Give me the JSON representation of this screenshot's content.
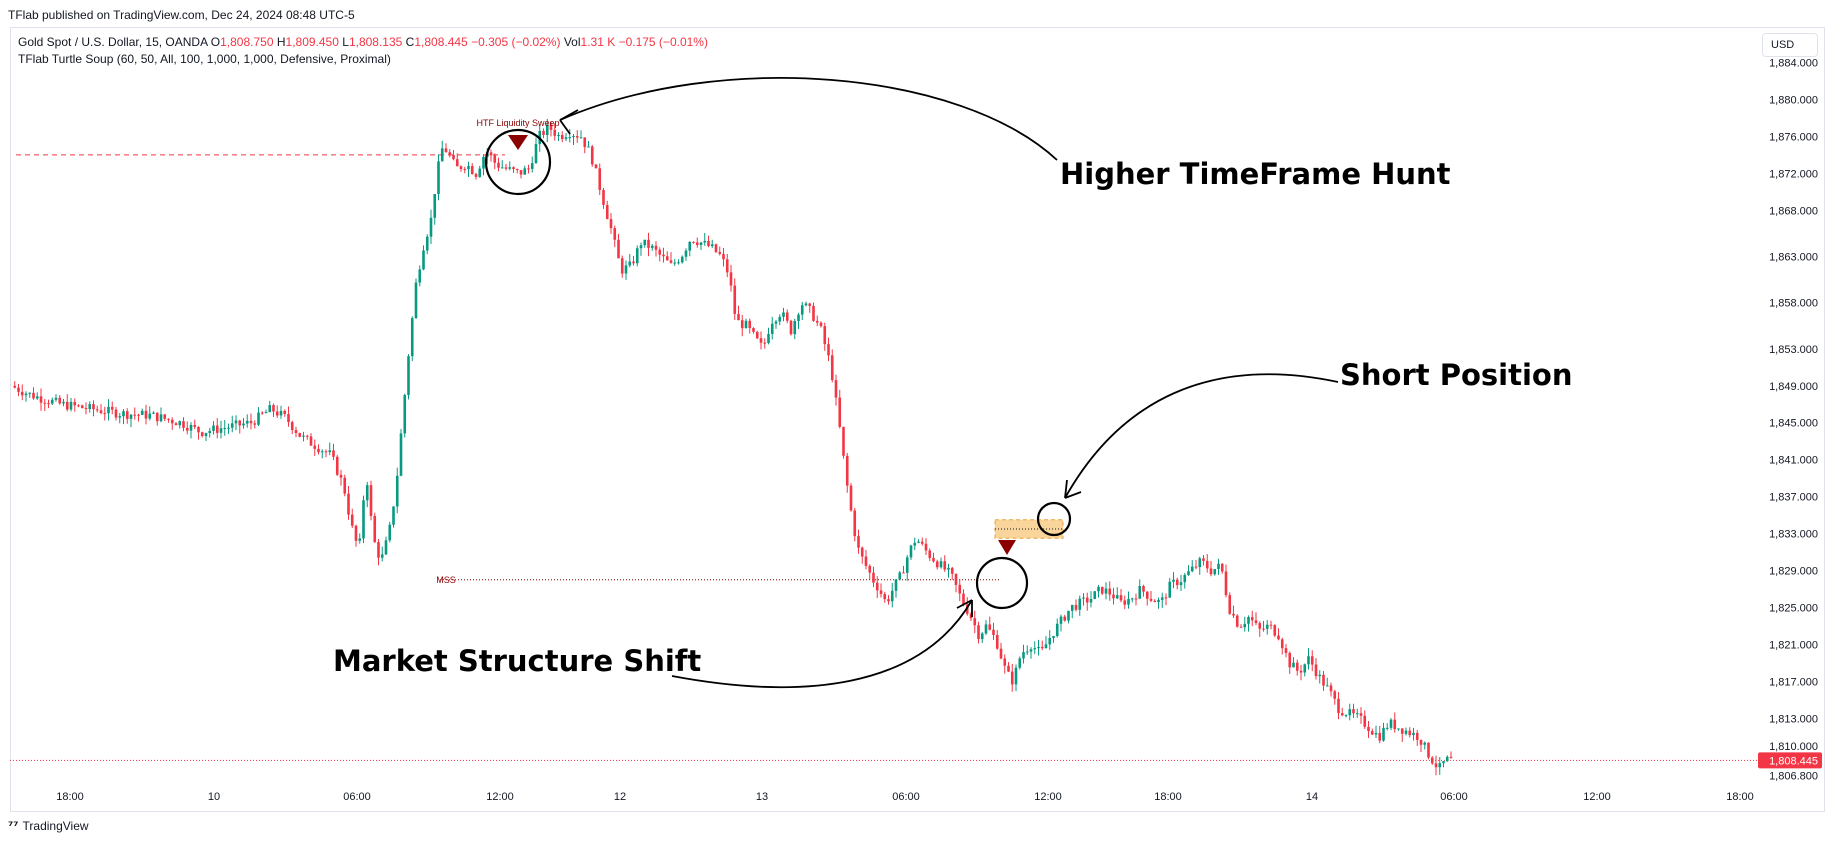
{
  "header": {
    "published": "TFlab published on TradingView.com, Dec 24, 2024 08:48 UTC-5"
  },
  "legend": {
    "symbol": "Gold Spot / U.S. Dollar, 15, OANDA",
    "o_label": "O",
    "o_value": "1,808.750",
    "h_label": "H",
    "h_value": "1,809.450",
    "l_label": "L",
    "l_value": "1,808.135",
    "c_label": "C",
    "c_value": "1,808.445",
    "change": "−0.305 (−0.02%)",
    "vol_label": "Vol",
    "vol_value": "1.31 K",
    "vol_change": "−0.175 (−0.01%)",
    "indicator": "TFlab Turtle Soup (60, 50, All, 100, 1,000, 1,000, Defensive, Proximal)"
  },
  "currency_button": "USD",
  "footer": {
    "brand": "TradingView"
  },
  "colors": {
    "up": "#089981",
    "down": "#f23645",
    "marker": "#8b0000",
    "zone": "#f7c77a"
  },
  "chart_data": {
    "type": "candlestick",
    "title": "",
    "y_ticks": [
      "1,884.000",
      "1,880.000",
      "1,876.000",
      "1,872.000",
      "1,868.000",
      "1,863.000",
      "1,858.000",
      "1,853.000",
      "1,849.000",
      "1,845.000",
      "1,841.000",
      "1,837.000",
      "1,833.000",
      "1,829.000",
      "1,825.000",
      "1,821.000",
      "1,817.000",
      "1,813.000",
      "1,810.000",
      "1,806.800"
    ],
    "ylim": [
      1806.0,
      1886.0
    ],
    "x_ticks": [
      "18:00",
      "10",
      "06:00",
      "12:00",
      "12",
      "13",
      "06:00",
      "12:00",
      "18:00",
      "14",
      "06:00",
      "12:00",
      "18:00"
    ],
    "last_price": "1,808.445",
    "last_value": 1808.445,
    "price_path": [
      [
        0,
        1849.0
      ],
      [
        20,
        1848.0
      ],
      [
        50,
        1847.0
      ],
      [
        80,
        1846.5
      ],
      [
        110,
        1846.0
      ],
      [
        140,
        1845.8
      ],
      [
        170,
        1845.0
      ],
      [
        190,
        1844.0
      ],
      [
        215,
        1844.5
      ],
      [
        240,
        1845.0
      ],
      [
        260,
        1846.5
      ],
      [
        275,
        1845.5
      ],
      [
        290,
        1843.5
      ],
      [
        305,
        1842.5
      ],
      [
        320,
        1841.5
      ],
      [
        333,
        1838.0
      ],
      [
        340,
        1834.0
      ],
      [
        348,
        1831.0
      ],
      [
        355,
        1840.0
      ],
      [
        362,
        1832.5
      ],
      [
        370,
        1830.0
      ],
      [
        378,
        1833.0
      ],
      [
        385,
        1838.0
      ],
      [
        392,
        1846.0
      ],
      [
        398,
        1853.0
      ],
      [
        405,
        1860.0
      ],
      [
        412,
        1864.0
      ],
      [
        420,
        1867.0
      ],
      [
        426,
        1872.0
      ],
      [
        432,
        1875.0
      ],
      [
        438,
        1874.0
      ],
      [
        445,
        1872.5
      ],
      [
        455,
        1873.0
      ],
      [
        465,
        1872.0
      ],
      [
        475,
        1874.5
      ],
      [
        485,
        1873.0
      ],
      [
        495,
        1872.5
      ],
      [
        508,
        1872.0
      ],
      [
        518,
        1872.5
      ],
      [
        528,
        1876.0
      ],
      [
        538,
        1877.0
      ],
      [
        548,
        1876.0
      ],
      [
        558,
        1876.5
      ],
      [
        570,
        1876.0
      ],
      [
        580,
        1874.0
      ],
      [
        590,
        1870.0
      ],
      [
        600,
        1866.0
      ],
      [
        610,
        1861.5
      ],
      [
        620,
        1862.0
      ],
      [
        630,
        1864.5
      ],
      [
        640,
        1864.0
      ],
      [
        650,
        1863.0
      ],
      [
        660,
        1862.0
      ],
      [
        670,
        1863.0
      ],
      [
        680,
        1865.0
      ],
      [
        690,
        1864.5
      ],
      [
        700,
        1864.0
      ],
      [
        710,
        1863.0
      ],
      [
        718,
        1861.0
      ],
      [
        725,
        1856.0
      ],
      [
        735,
        1855.5
      ],
      [
        745,
        1854.0
      ],
      [
        752,
        1853.0
      ],
      [
        760,
        1856.0
      ],
      [
        770,
        1857.0
      ],
      [
        780,
        1855.0
      ],
      [
        790,
        1858.0
      ],
      [
        800,
        1857.0
      ],
      [
        810,
        1855.0
      ],
      [
        820,
        1851.0
      ],
      [
        828,
        1845.0
      ],
      [
        835,
        1839.0
      ],
      [
        842,
        1834.0
      ],
      [
        848,
        1831.0
      ],
      [
        855,
        1829.5
      ],
      [
        862,
        1828.0
      ],
      [
        868,
        1827.0
      ],
      [
        875,
        1825.5
      ],
      [
        882,
        1827.0
      ],
      [
        890,
        1828.5
      ],
      [
        898,
        1831.0
      ],
      [
        905,
        1832.5
      ],
      [
        912,
        1831.5
      ],
      [
        920,
        1830.5
      ],
      [
        930,
        1829.5
      ],
      [
        940,
        1828.5
      ],
      [
        950,
        1826.0
      ],
      [
        960,
        1824.0
      ],
      [
        968,
        1822.0
      ],
      [
        975,
        1823.0
      ],
      [
        985,
        1821.5
      ],
      [
        995,
        1818.0
      ],
      [
        1002,
        1817.0
      ],
      [
        1010,
        1820.0
      ],
      [
        1020,
        1821.0
      ],
      [
        1030,
        1820.0
      ],
      [
        1040,
        1822.0
      ],
      [
        1050,
        1823.5
      ],
      [
        1060,
        1825.0
      ],
      [
        1070,
        1825.5
      ],
      [
        1080,
        1826.0
      ],
      [
        1090,
        1827.0
      ],
      [
        1100,
        1826.5
      ],
      [
        1110,
        1825.5
      ],
      [
        1120,
        1826.0
      ],
      [
        1130,
        1827.0
      ],
      [
        1140,
        1826.0
      ],
      [
        1150,
        1825.5
      ],
      [
        1160,
        1827.5
      ],
      [
        1170,
        1828.0
      ],
      [
        1180,
        1829.0
      ],
      [
        1190,
        1830.0
      ],
      [
        1200,
        1829.0
      ],
      [
        1210,
        1829.5
      ],
      [
        1218,
        1825.0
      ],
      [
        1228,
        1823.0
      ],
      [
        1238,
        1824.0
      ],
      [
        1248,
        1822.5
      ],
      [
        1258,
        1823.0
      ],
      [
        1268,
        1822.0
      ],
      [
        1278,
        1819.0
      ],
      [
        1288,
        1818.0
      ],
      [
        1298,
        1819.5
      ],
      [
        1308,
        1817.5
      ],
      [
        1318,
        1816.0
      ],
      [
        1328,
        1814.0
      ],
      [
        1338,
        1813.5
      ],
      [
        1348,
        1813.0
      ],
      [
        1358,
        1812.0
      ],
      [
        1368,
        1811.0
      ],
      [
        1378,
        1812.5
      ],
      [
        1388,
        1812.0
      ],
      [
        1398,
        1811.5
      ],
      [
        1408,
        1811.0
      ],
      [
        1418,
        1809.0
      ],
      [
        1428,
        1807.5
      ],
      [
        1435,
        1808.5
      ],
      [
        1442,
        1808.4
      ]
    ],
    "annotations": [
      {
        "id": "htf",
        "text": "Higher TimeFrame Hunt"
      },
      {
        "id": "short",
        "text": "Short Position"
      },
      {
        "id": "mss",
        "text": "Market Structure Shift"
      }
    ],
    "small_labels": {
      "liquidity_sweep": "HTF Liquidity Sweep",
      "mss": "MSS"
    },
    "levels": {
      "htf_liquidity": 1874.0,
      "mss": 1828.0,
      "zone_top": 1834.5,
      "zone_bottom": 1832.5,
      "zone_mid": 1833.5
    }
  }
}
